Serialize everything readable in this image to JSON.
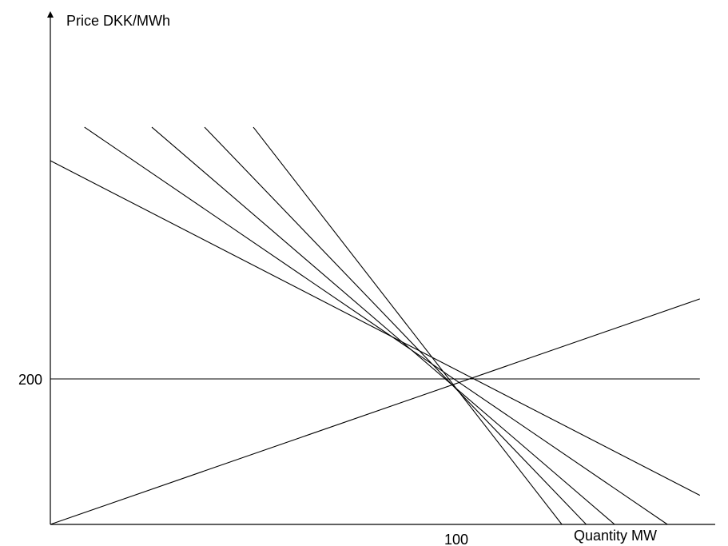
{
  "chart_data": {
    "type": "line",
    "title": "",
    "ylabel": "Price DKK/MWh",
    "xlabel": "Quantity MW",
    "xlim": [
      0,
      160
    ],
    "ylim": [
      0,
      546
    ],
    "y_ticks": [
      {
        "value": 200,
        "label": "200"
      }
    ],
    "x_ticks": [
      {
        "value": 100,
        "label": "100"
      }
    ],
    "grid": false,
    "legend": "none",
    "series": [
      {
        "kind": "demand",
        "points": [
          [
            0,
            500
          ],
          [
            160,
            40
          ]
        ]
      },
      {
        "kind": "demand",
        "points": [
          [
            8.4,
            546
          ],
          [
            152,
            0
          ]
        ]
      },
      {
        "kind": "demand",
        "points": [
          [
            25,
            546
          ],
          [
            139,
            0
          ]
        ]
      },
      {
        "kind": "demand",
        "points": [
          [
            38,
            546
          ],
          [
            132,
            0
          ]
        ]
      },
      {
        "kind": "demand",
        "points": [
          [
            50,
            546
          ],
          [
            126,
            0
          ]
        ]
      },
      {
        "kind": "horizontal",
        "points": [
          [
            0,
            200
          ],
          [
            160,
            200
          ]
        ]
      },
      {
        "kind": "supply",
        "points": [
          [
            0,
            0
          ],
          [
            160,
            310
          ]
        ]
      }
    ]
  }
}
